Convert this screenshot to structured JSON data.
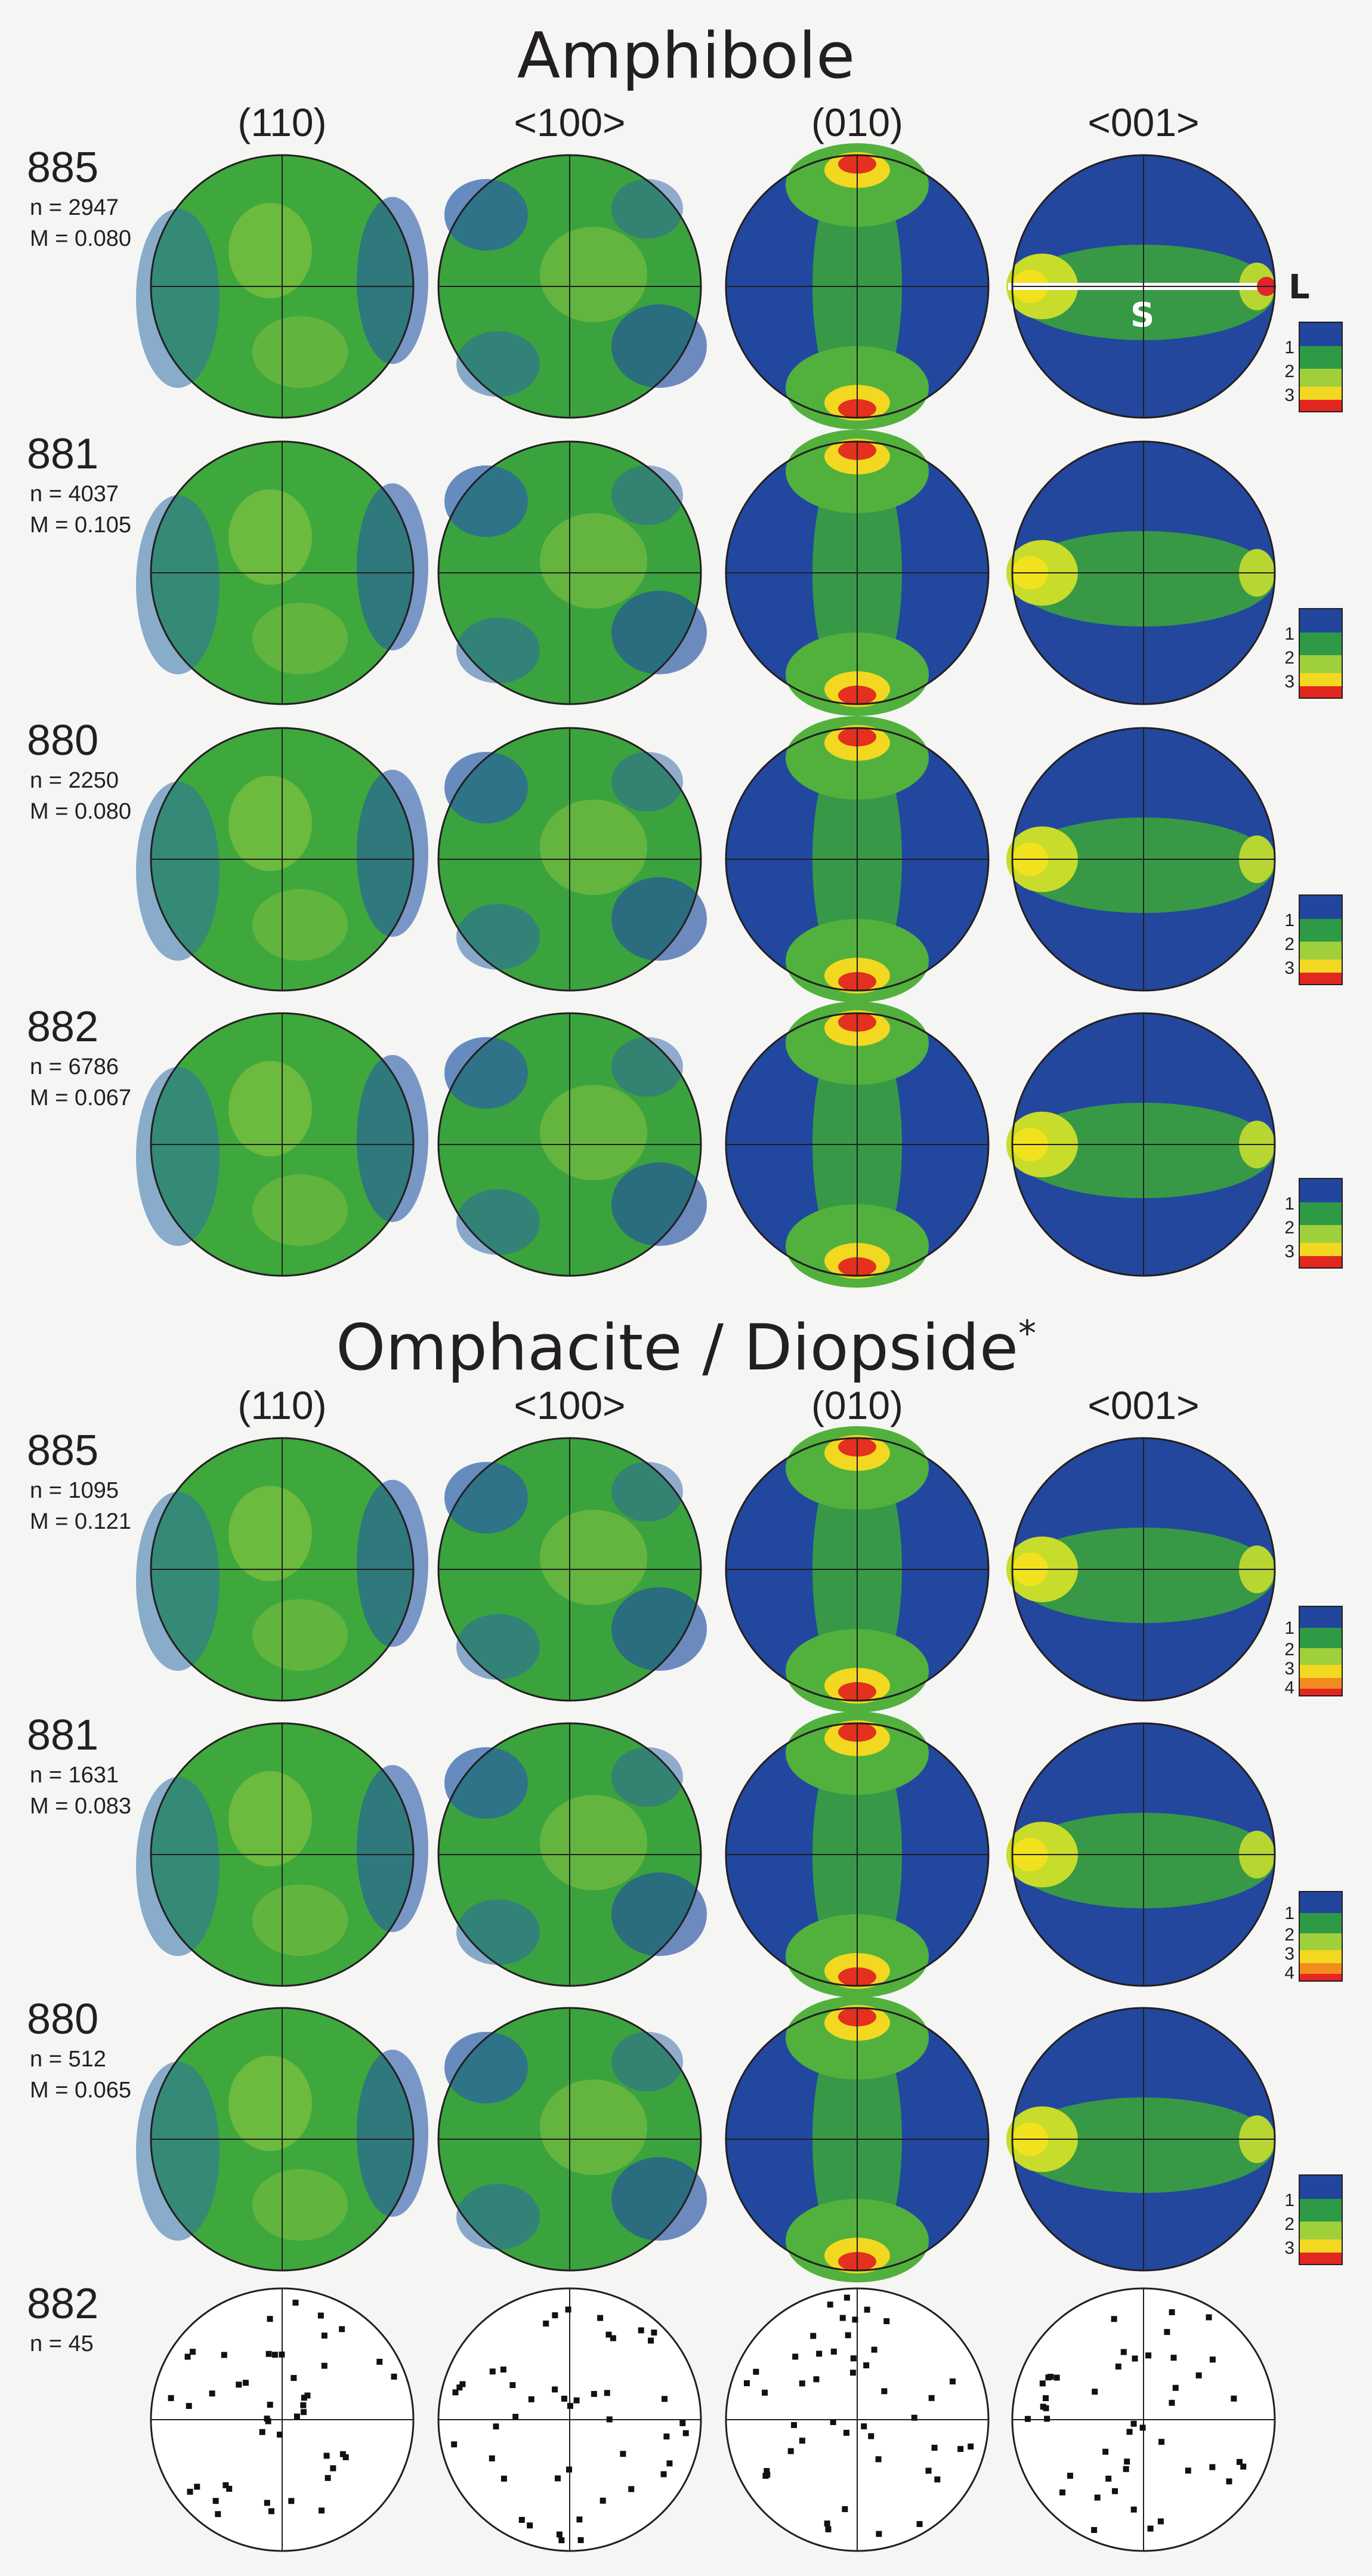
{
  "sections": [
    {
      "title": "Amphibole",
      "title_suffix": "",
      "columns": [
        "(110)",
        "<100>",
        "(010)",
        "<001>"
      ],
      "rows": [
        {
          "sample": "885",
          "n": "n = 2947",
          "m": "M = 0.080",
          "scale": [
            "1",
            "2",
            "3"
          ]
        },
        {
          "sample": "881",
          "n": "n = 4037",
          "m": "M = 0.105",
          "scale": [
            "1",
            "2",
            "3"
          ]
        },
        {
          "sample": "880",
          "n": "n = 2250",
          "m": "M = 0.080",
          "scale": [
            "1",
            "2",
            "3"
          ]
        },
        {
          "sample": "882",
          "n": "n = 6786",
          "m": "M = 0.067",
          "scale": [
            "1",
            "2",
            "3"
          ]
        }
      ]
    },
    {
      "title": "Omphacite / Diopside",
      "title_suffix": "*",
      "columns": [
        "(110)",
        "<100>",
        "(010)",
        "<001>"
      ],
      "rows": [
        {
          "sample": "885",
          "n": "n = 1095",
          "m": "M = 0.121",
          "scale": [
            "1",
            "2",
            "3",
            "4"
          ]
        },
        {
          "sample": "881",
          "n": "n = 1631",
          "m": "M = 0.083",
          "scale": [
            "1",
            "2",
            "3",
            "4"
          ]
        },
        {
          "sample": "880",
          "n": "n = 512",
          "m": "M = 0.065",
          "scale": [
            "1",
            "2",
            "3"
          ]
        },
        {
          "sample": "882",
          "n": "n = 45",
          "m": "",
          "scale": []
        }
      ]
    }
  ],
  "annotations": {
    "lineation": "L",
    "foliation": "S"
  },
  "colors": {
    "low": "#1f3f9a",
    "mid": "#2fa23a",
    "high": "#f2e21d",
    "max": "#e3261f",
    "marker": "#e1242a"
  }
}
